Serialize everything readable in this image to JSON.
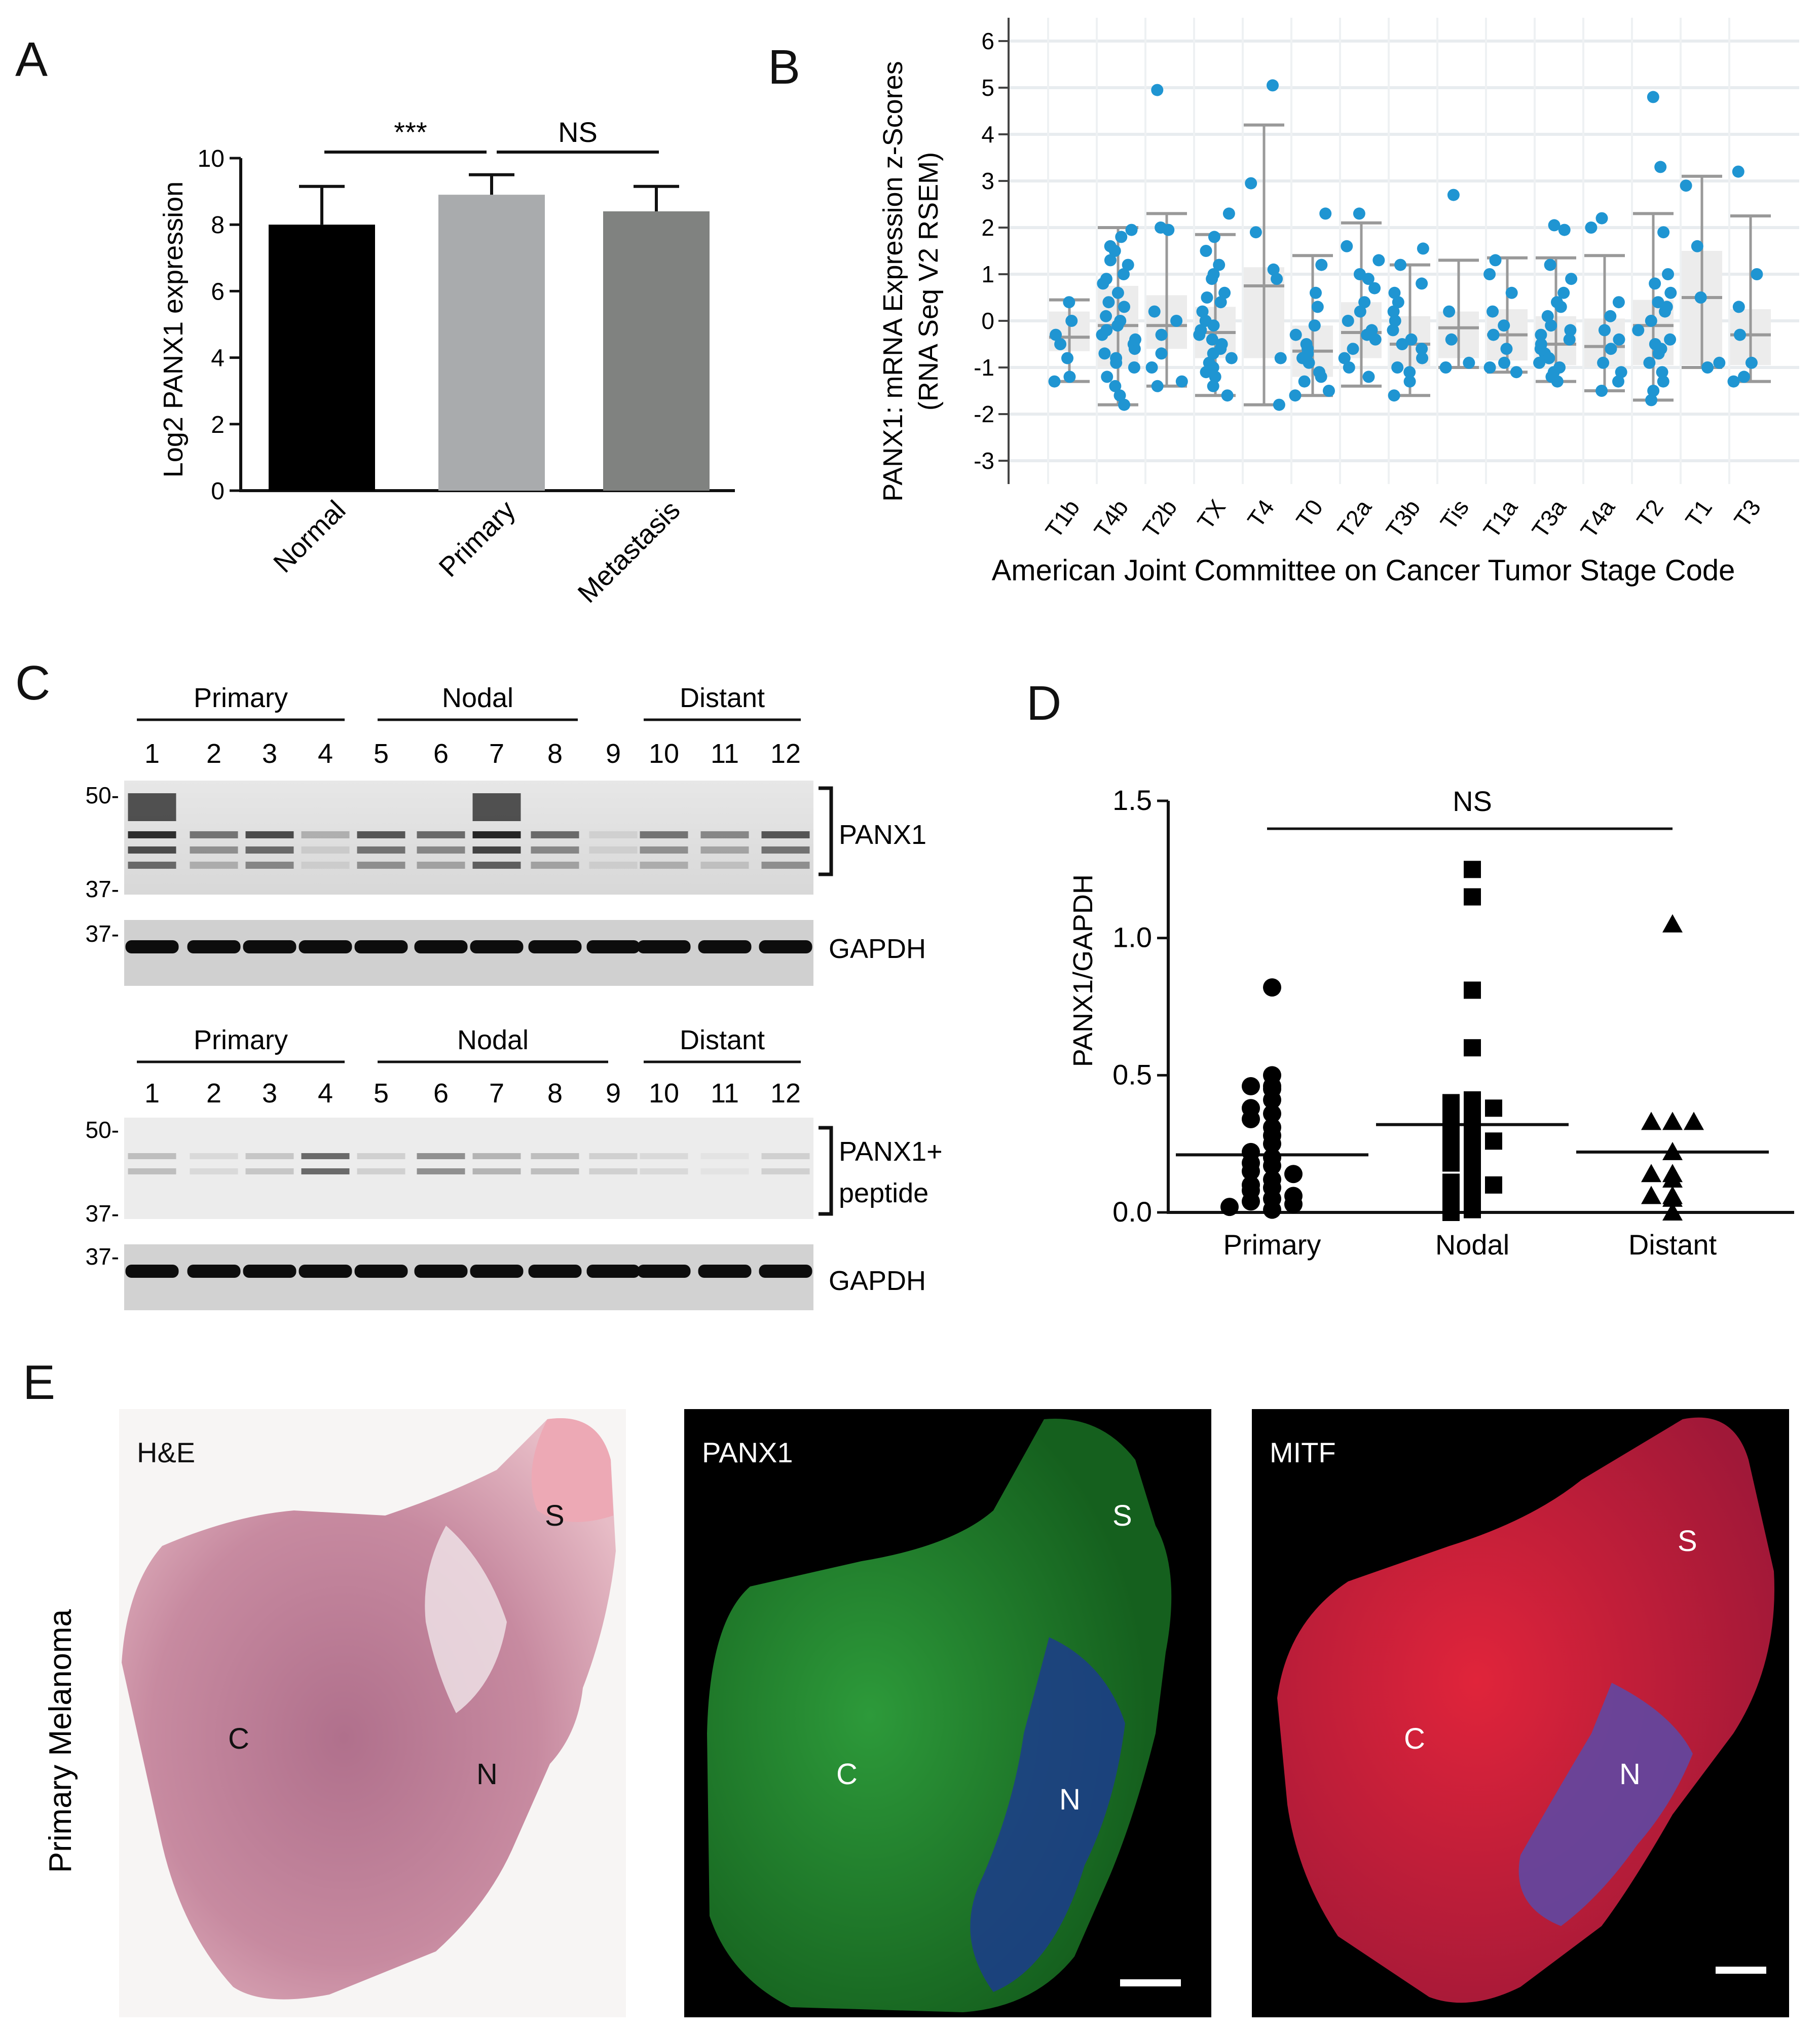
{
  "panel_labels": {
    "a": "A",
    "b": "B",
    "c": "C",
    "d": "D",
    "e": "E"
  },
  "panel_a": {
    "ylabel": "Log2 PANX1 expression",
    "yticks": [
      "0",
      "2",
      "4",
      "6",
      "8",
      "10"
    ],
    "sig_left": "***",
    "sig_right": "NS"
  },
  "panel_b": {
    "ylabel_line1": "PANX1: mRNA Expression z-Scores",
    "ylabel_line2": "(RNA Seq V2 RSEM)",
    "xlabel": "American Joint Committee on Cancer Tumor Stage Code",
    "yticks": [
      "6",
      "5",
      "4",
      "3",
      "2",
      "1",
      "0",
      "-1",
      "-2",
      "-3"
    ]
  },
  "panel_c": {
    "top": {
      "groups": [
        "Primary",
        "Nodal",
        "Distant"
      ],
      "lanes": [
        "1",
        "2",
        "3",
        "4",
        "5",
        "6",
        "7",
        "8",
        "9",
        "10",
        "11",
        "12"
      ],
      "mw_upper": "50-",
      "mw_lower": "37-",
      "mw_gapdh": "37-",
      "target": "PANX1",
      "control": "GAPDH"
    },
    "bottom": {
      "groups": [
        "Primary",
        "Nodal",
        "Distant"
      ],
      "lanes": [
        "1",
        "2",
        "3",
        "4",
        "5",
        "6",
        "7",
        "8",
        "9",
        "10",
        "11",
        "12"
      ],
      "mw_upper": "50-",
      "mw_lower": "37-",
      "mw_gapdh": "37-",
      "target_line1": "PANX1+",
      "target_line2": "peptide",
      "control": "GAPDH"
    }
  },
  "panel_d": {
    "ylabel": "PANX1/GAPDH",
    "yticks": [
      "0.0",
      "0.5",
      "1.0",
      "1.5"
    ],
    "sig": "NS"
  },
  "panel_e": {
    "row_label": "Primary Melanoma",
    "images": [
      {
        "title": "H&E",
        "s": "S",
        "c": "C",
        "n": "N"
      },
      {
        "title": "PANX1",
        "s": "S",
        "c": "C",
        "n": "N"
      },
      {
        "title": "MITF",
        "s": "S",
        "c": "C",
        "n": "N"
      }
    ]
  },
  "chart_data": [
    {
      "type": "bar",
      "panel": "A",
      "categories": [
        "Normal",
        "Primary",
        "Metastasis"
      ],
      "values": [
        8.0,
        8.9,
        8.4
      ],
      "errors": [
        1.15,
        0.6,
        0.75
      ],
      "colors": [
        "#000000",
        "#a9abad",
        "#808280"
      ],
      "ylabel": "Log2 PANX1 expression",
      "ylim": [
        0,
        10
      ]
    },
    {
      "type": "scatter",
      "panel": "B",
      "subtype": "box-strip",
      "xlabel": "American Joint Committee on Cancer Tumor Stage Code",
      "ylabel": "PANX1: mRNA Expression z-Scores (RNA Seq V2 RSEM)",
      "ylim": [
        -3.5,
        6.5
      ],
      "point_color": "#1f95d2",
      "groups": [
        {
          "name": "T1b",
          "box": [
            -1.3,
            -0.65,
            -0.35,
            0.2,
            0.45
          ],
          "points": [
            0.4,
            0.0,
            -0.3,
            -0.5,
            -0.8,
            -1.2,
            -1.3
          ]
        },
        {
          "name": "T4b",
          "box": [
            -1.8,
            -1.0,
            -0.1,
            0.75,
            2.0
          ],
          "points": [
            1.95,
            1.8,
            1.5,
            1.3,
            1.2,
            1.0,
            0.8,
            0.6,
            0.4,
            0.3,
            0.1,
            0.0,
            -0.1,
            -0.2,
            -0.3,
            -0.5,
            -0.6,
            -0.7,
            -0.8,
            -1.0,
            -1.2,
            -1.4,
            -1.6,
            -1.8,
            1.6,
            0.9,
            -0.4,
            -0.9
          ]
        },
        {
          "name": "T2b",
          "box": [
            -1.4,
            -0.6,
            -0.1,
            0.55,
            2.3
          ],
          "points": [
            4.95,
            1.95,
            2.0,
            0.2,
            0.0,
            -0.3,
            -0.7,
            -1.0,
            -1.3,
            -1.4
          ]
        },
        {
          "name": "TX",
          "box": [
            -1.6,
            -0.8,
            -0.25,
            0.3,
            1.85
          ],
          "points": [
            2.3,
            1.8,
            1.5,
            1.2,
            0.9,
            0.6,
            0.4,
            0.2,
            0.0,
            -0.1,
            -0.2,
            -0.3,
            -0.4,
            -0.5,
            -0.6,
            -0.8,
            -0.9,
            -1.0,
            -1.2,
            -1.4,
            -1.6,
            1.0,
            -0.7,
            0.5,
            -1.1
          ]
        },
        {
          "name": "T4",
          "box": [
            -1.8,
            -0.8,
            0.75,
            1.15,
            4.2
          ],
          "points": [
            5.05,
            2.95,
            1.9,
            1.1,
            0.9,
            -0.8,
            -1.8
          ]
        },
        {
          "name": "T0",
          "box": [
            -1.6,
            -1.2,
            -0.65,
            -0.1,
            1.4
          ],
          "points": [
            2.3,
            1.2,
            0.3,
            -0.1,
            -0.3,
            -0.5,
            -0.6,
            -0.8,
            -0.9,
            -1.1,
            -1.2,
            -1.3,
            -1.5,
            -1.6,
            -0.7,
            0.6
          ]
        },
        {
          "name": "T2a",
          "box": [
            -1.4,
            -0.8,
            -0.25,
            0.4,
            2.1
          ],
          "points": [
            2.3,
            1.6,
            1.3,
            1.0,
            0.7,
            0.4,
            0.2,
            0.0,
            -0.2,
            -0.4,
            -0.6,
            -0.8,
            -1.0,
            -1.2,
            0.9,
            -0.3
          ]
        },
        {
          "name": "T3b",
          "box": [
            -1.6,
            -1.0,
            -0.5,
            0.1,
            1.2
          ],
          "points": [
            1.55,
            1.2,
            0.8,
            0.4,
            0.2,
            0.0,
            -0.2,
            -0.4,
            -0.6,
            -0.8,
            -1.0,
            -1.3,
            -1.6,
            -0.5,
            -1.1,
            0.6
          ]
        },
        {
          "name": "Tis",
          "box": [
            -1.0,
            -0.8,
            -0.15,
            0.2,
            1.3
          ],
          "points": [
            2.7,
            0.2,
            -0.4,
            -0.9,
            -1.0
          ]
        },
        {
          "name": "T1a",
          "box": [
            -1.1,
            -0.85,
            -0.3,
            0.25,
            1.35
          ],
          "points": [
            1.3,
            1.0,
            0.6,
            0.2,
            -0.1,
            -0.3,
            -0.6,
            -0.9,
            -1.0,
            -1.1
          ]
        },
        {
          "name": "T3a",
          "box": [
            -1.3,
            -0.95,
            -0.5,
            0.1,
            1.35
          ],
          "points": [
            2.05,
            1.95,
            1.2,
            0.9,
            0.6,
            0.3,
            0.1,
            -0.1,
            -0.3,
            -0.4,
            -0.5,
            -0.6,
            -0.7,
            -0.8,
            -0.9,
            -1.0,
            -1.1,
            -1.2,
            -1.3,
            -0.2,
            0.4
          ]
        },
        {
          "name": "T4a",
          "box": [
            -1.5,
            -1.0,
            -0.55,
            0.05,
            1.4
          ],
          "points": [
            2.2,
            2.0,
            0.4,
            0.1,
            -0.2,
            -0.4,
            -0.6,
            -0.9,
            -1.1,
            -1.3,
            -1.5
          ]
        },
        {
          "name": "T2",
          "box": [
            -1.7,
            -0.95,
            -0.1,
            0.45,
            2.3
          ],
          "points": [
            4.8,
            3.3,
            1.9,
            1.0,
            0.8,
            0.6,
            0.4,
            0.2,
            0.0,
            -0.2,
            -0.4,
            -0.5,
            -0.7,
            -0.9,
            -1.1,
            -1.3,
            -1.5,
            -1.7,
            0.3,
            -0.6
          ]
        },
        {
          "name": "T1",
          "box": [
            -1.0,
            -0.95,
            0.5,
            1.5,
            3.1
          ],
          "points": [
            2.9,
            1.6,
            0.5,
            -0.9,
            -1.0
          ]
        },
        {
          "name": "T3",
          "box": [
            -1.3,
            -0.95,
            -0.3,
            0.25,
            2.25
          ],
          "points": [
            3.2,
            1.0,
            0.3,
            -0.3,
            -0.9,
            -1.2,
            -1.3
          ]
        }
      ]
    },
    {
      "type": "scatter",
      "panel": "D",
      "categories": [
        "Primary",
        "Nodal",
        "Distant"
      ],
      "ylabel": "PANX1/GAPDH",
      "ylim": [
        0,
        1.5
      ],
      "series": [
        {
          "name": "Primary",
          "marker": "circle",
          "mean": 0.21,
          "values": [
            0.82,
            0.5,
            0.46,
            0.46,
            0.45,
            0.41,
            0.38,
            0.36,
            0.34,
            0.31,
            0.28,
            0.25,
            0.22,
            0.2,
            0.18,
            0.17,
            0.15,
            0.14,
            0.12,
            0.1,
            0.09,
            0.08,
            0.06,
            0.05,
            0.04,
            0.03,
            0.02,
            0.01
          ]
        },
        {
          "name": "Nodal",
          "marker": "square",
          "mean": 0.32,
          "values": [
            1.25,
            1.15,
            0.81,
            0.6,
            0.41,
            0.4,
            0.38,
            0.37,
            0.36,
            0.33,
            0.31,
            0.29,
            0.27,
            0.26,
            0.24,
            0.22,
            0.2,
            0.18,
            0.15,
            0.13,
            0.11,
            0.1,
            0.08,
            0.06,
            0.04,
            0.02,
            0.01,
            0.0
          ]
        },
        {
          "name": "Distant",
          "marker": "triangle",
          "mean": 0.22,
          "values": [
            1.05,
            0.33,
            0.33,
            0.33,
            0.22,
            0.14,
            0.14,
            0.12,
            0.06,
            0.06,
            0.05,
            0.0
          ]
        }
      ]
    }
  ]
}
